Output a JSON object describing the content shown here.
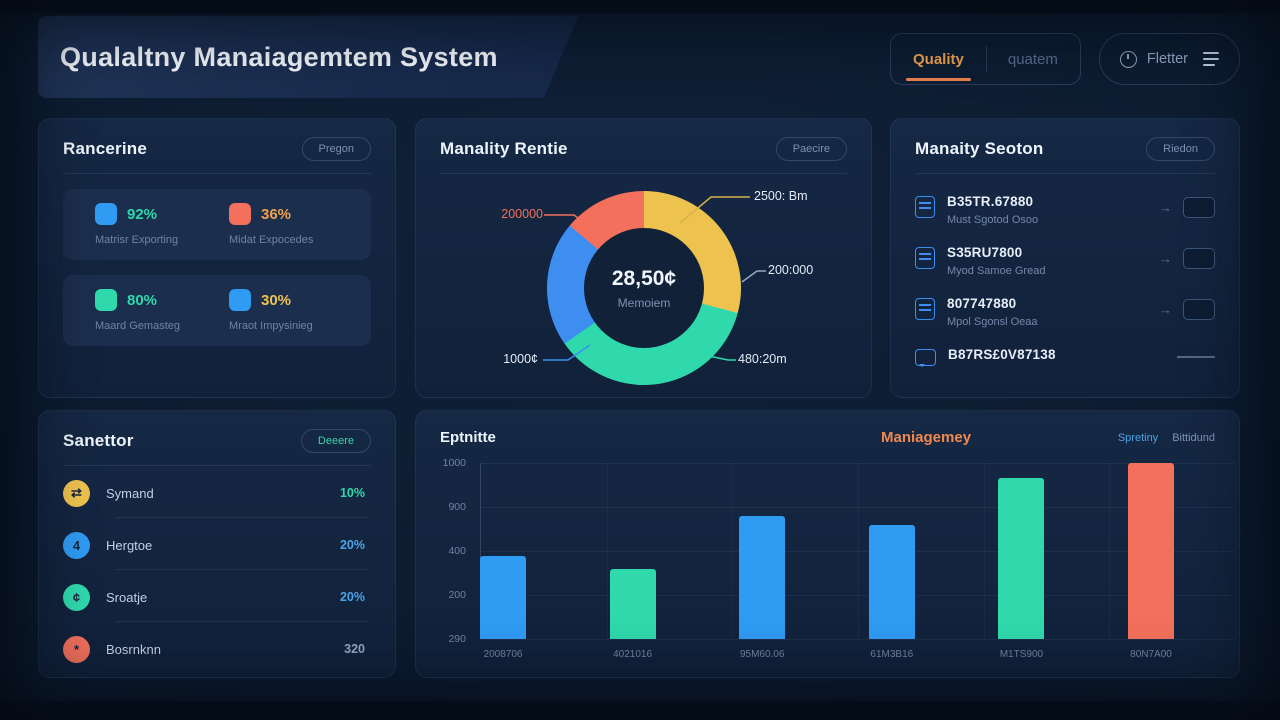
{
  "app": {
    "title": "Qualaltny Manaiagemtem System"
  },
  "header": {
    "tabs": [
      {
        "label": "Quality"
      },
      {
        "label": "quatem"
      }
    ],
    "filter": {
      "label": "Fletter"
    }
  },
  "colors": {
    "blue": "#2f9bf2",
    "teal": "#2fd9ac",
    "orange": "#f2705c",
    "yellow": "#eec24f",
    "accent": "#f0a24c"
  },
  "cards": {
    "metrics": {
      "title": "Rancerine",
      "badge": "Pregon",
      "tiles": [
        {
          "value": "92%",
          "label": "Matrisr Exporting",
          "icon_color": "#2f9bf2",
          "value_color": "#2fd9ac"
        },
        {
          "value": "36%",
          "label": "Midat Expocedes",
          "icon_color": "#f2705c",
          "value_color": "#f0a24c"
        },
        {
          "value": "80%",
          "label": "Maard Gemasteg",
          "icon_color": "#2fd9ac",
          "value_color": "#2fd9ac"
        },
        {
          "value": "30%",
          "label": "Mraot Impysinieg",
          "icon_color": "#2f9bf2",
          "value_color": "#eec24f"
        }
      ]
    },
    "donut": {
      "title": "Manality Rentie",
      "badge": "Paecire",
      "center_value": "28,50¢",
      "center_label": "Memoiem",
      "labels": {
        "top_left": "200000",
        "top_right": "2500: Bm",
        "right": "200:000",
        "bottom_right": "480:20m",
        "bottom_left": "1000¢"
      }
    },
    "inspection": {
      "title": "Manaity Seoton",
      "badge": "Riedon",
      "rows": [
        {
          "title": "B35TR.67880",
          "subtitle": "Must Sgotod Osoo",
          "toggle_color": "#2fd9ac"
        },
        {
          "title": "S35RU7800",
          "subtitle": "Myod Samoe Gread",
          "toggle_color": "#2f9bf2"
        },
        {
          "title": "807747880",
          "subtitle": "Mpol Sgonsl Oeaa",
          "toggle_color": "#8a5a44"
        },
        {
          "title": "B87RS£0V87138"
        }
      ]
    },
    "sanettor": {
      "title": "Sanettor",
      "badge": "Deeere",
      "rows": [
        {
          "label": "Symand",
          "value": "10%",
          "icon_color": "#eec24f",
          "value_color": "#2fd9ac",
          "icon_glyph": "⇄"
        },
        {
          "label": "Hergtoe",
          "value": "20%",
          "icon_color": "#2f9bf2",
          "value_color": "#4da3e8",
          "icon_glyph": "4"
        },
        {
          "label": "Sroatje",
          "value": "20%",
          "icon_color": "#2fd9ac",
          "value_color": "#4da3e8",
          "icon_glyph": "¢"
        },
        {
          "label": "Bosrnknn",
          "value": "320",
          "icon_color": "#f2705c",
          "value_color": "#93a7c4",
          "icon_glyph": "*"
        }
      ]
    },
    "barchart": {
      "title": "Eptnitte",
      "subtitle": "Maniagemey",
      "legend": [
        {
          "label": "Spretiny",
          "color": "#4da3e8"
        },
        {
          "label": "Bittidund",
          "color": "#7e93b3"
        }
      ]
    }
  },
  "chart_data": [
    {
      "type": "pie",
      "title": "Manality Rentie",
      "subtype": "donut",
      "center_value": "28,50¢",
      "center_label": "Memoiem",
      "note": "segments clockwise from 12 o'clock, sizes in degrees",
      "segments": [
        {
          "label": "2500: Bm",
          "color": "#eec24f",
          "degrees": 105
        },
        {
          "label": "480:20m",
          "color": "#2fd9ac",
          "degrees": 130
        },
        {
          "label": "1000¢",
          "color": "#3d8ef0",
          "degrees": 75
        },
        {
          "label": "200000",
          "color": "#f2705c",
          "degrees": 50
        }
      ],
      "callouts": [
        "200000",
        "2500: Bm",
        "200:000",
        "480:20m",
        "1000¢"
      ],
      "legend_position": "callouts"
    },
    {
      "type": "bar",
      "title": "Eptnitte",
      "categories": [
        "2008706",
        "4021016",
        "95M60.06",
        "61M3B16",
        "M1TS900",
        "80N7A00"
      ],
      "values": [
        470,
        400,
        700,
        650,
        915,
        1000
      ],
      "bar_colors": [
        "#2f9bf2",
        "#2fd9ac",
        "#2f9bf2",
        "#2f9bf2",
        "#2fd9ac",
        "#f2705c"
      ],
      "y_ticks": [
        "1000",
        "900",
        "400",
        "200",
        "290"
      ],
      "ylim": [
        0,
        1000
      ],
      "grid": true,
      "legend": [
        "Spretiny",
        "Bittidund"
      ],
      "legend_position": "top-right"
    }
  ]
}
